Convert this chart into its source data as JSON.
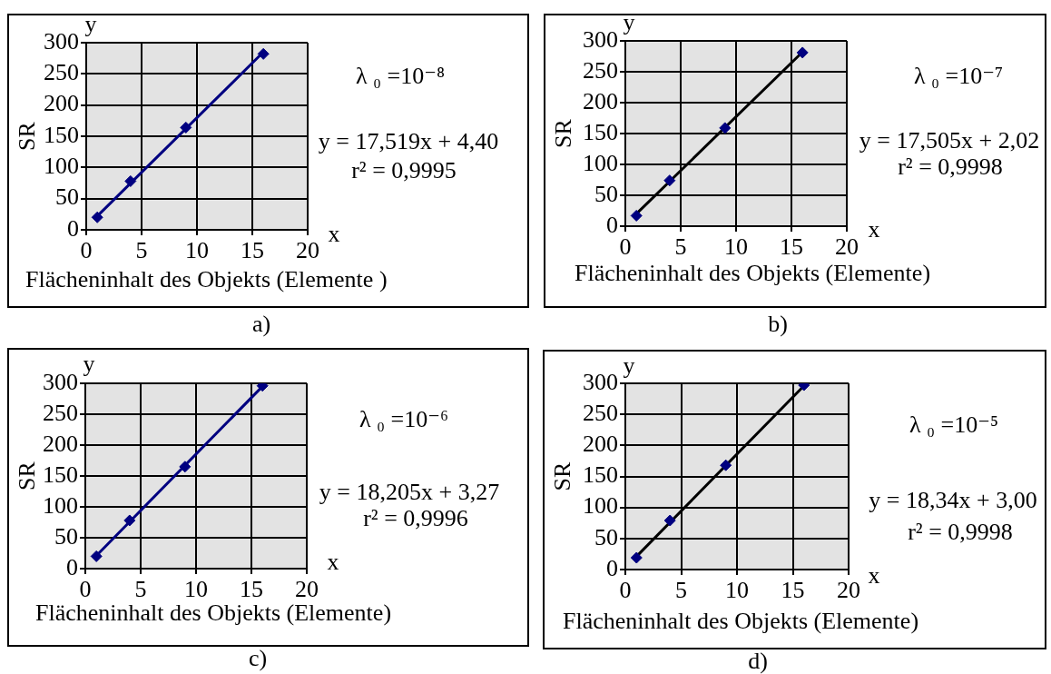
{
  "chart_data": [
    {
      "type": "scatter",
      "xlabel": "Flächeninhalt des Objekts (Elemente )",
      "ylabel": "SR",
      "xlim": [
        0,
        20
      ],
      "xticks": [
        0,
        5,
        10,
        15,
        20
      ],
      "ylim": [
        0,
        300
      ],
      "yticks": [
        0,
        50,
        100,
        150,
        200,
        250,
        300
      ],
      "grid": true,
      "marker": "diamond",
      "series": [
        {
          "type": "scatter",
          "color": "#000080",
          "x": [
            1,
            4,
            9,
            16
          ],
          "values": [
            20,
            78,
            164,
            282
          ]
        },
        {
          "type": "line",
          "color": "#000080",
          "x": [
            1,
            16
          ],
          "values": [
            22,
            285
          ],
          "marker": "none"
        }
      ],
      "annotations": [
        "y",
        "x",
        "λ ₀ =10⁻⁸",
        "y = 17,519x + 4,40",
        "r² = 0,9995",
        "a)"
      ]
    },
    {
      "type": "scatter",
      "xlabel": "Flächeninhalt des Objekts (Elemente)",
      "ylabel": "SR",
      "xlim": [
        0,
        20
      ],
      "xticks": [
        0,
        5,
        10,
        15,
        20
      ],
      "ylim": [
        0,
        300
      ],
      "yticks": [
        0,
        50,
        100,
        150,
        200,
        250,
        300
      ],
      "grid": true,
      "marker": "diamond",
      "series": [
        {
          "type": "scatter",
          "color": "#000080",
          "x": [
            1,
            4,
            9,
            16
          ],
          "values": [
            17,
            74,
            159,
            281
          ]
        },
        {
          "type": "line",
          "color": "#000000",
          "x": [
            1,
            16
          ],
          "values": [
            20,
            282
          ],
          "marker": "none"
        }
      ],
      "annotations": [
        "y",
        "x",
        "λ ₀ =10⁻⁷",
        "y = 17,505x + 2,02",
        "r² = 0,9998",
        "b)"
      ]
    },
    {
      "type": "scatter",
      "xlabel": "Flächeninhalt des Objekts (Elemente)",
      "ylabel": "SR",
      "xlim": [
        0,
        20
      ],
      "xticks": [
        0,
        5,
        10,
        15,
        20
      ],
      "ylim": [
        0,
        300
      ],
      "yticks": [
        0,
        50,
        100,
        150,
        200,
        250,
        300
      ],
      "grid": true,
      "marker": "diamond",
      "series": [
        {
          "type": "scatter",
          "color": "#000080",
          "x": [
            1,
            4,
            9,
            16
          ],
          "values": [
            20,
            78,
            165,
            296
          ]
        },
        {
          "type": "line",
          "color": "#000080",
          "x": [
            1,
            16
          ],
          "values": [
            21,
            295
          ],
          "marker": "none"
        }
      ],
      "annotations": [
        "y",
        "x",
        "λ ₀ =10⁻⁶",
        "y = 18,205x + 3,27",
        "r² = 0,9996",
        "c)"
      ]
    },
    {
      "type": "scatter",
      "xlabel": "Flächeninhalt des Objekts (Elemente)",
      "ylabel": "SR",
      "xlim": [
        0,
        20
      ],
      "xticks": [
        0,
        5,
        10,
        15,
        20
      ],
      "ylim": [
        0,
        300
      ],
      "yticks": [
        0,
        50,
        100,
        150,
        200,
        250,
        300
      ],
      "grid": true,
      "marker": "diamond",
      "series": [
        {
          "type": "scatter",
          "color": "#000080",
          "x": [
            1,
            4,
            9,
            16
          ],
          "values": [
            19,
            79,
            168,
            297
          ]
        },
        {
          "type": "line",
          "color": "#000000",
          "x": [
            1,
            16
          ],
          "values": [
            21,
            296
          ],
          "marker": "none"
        }
      ],
      "annotations": [
        "y",
        "x",
        "λ ₀ =10⁻⁵",
        "y = 18,34x + 3,00",
        "r² = 0,9998",
        "d)"
      ]
    }
  ]
}
